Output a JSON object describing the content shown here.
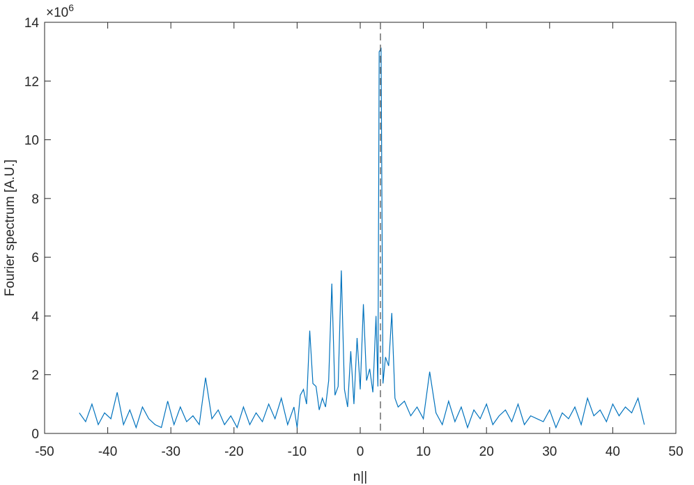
{
  "chart_data": {
    "type": "line",
    "xlabel": "n||",
    "ylabel": "Fourier spectrum [A.U.]",
    "y_exponent_base": "×10",
    "y_exponent": "6",
    "xlim": [
      -50,
      50
    ],
    "xticks": [
      -50,
      -40,
      -30,
      -20,
      -10,
      0,
      10,
      20,
      30,
      40,
      50
    ],
    "ylim": [
      0,
      14
    ],
    "yticks": [
      0,
      2,
      4,
      6,
      8,
      10,
      12,
      14
    ],
    "reference_line_x": 3.2,
    "reference_line_color": "#555555",
    "series": [
      {
        "color": "#0072bd",
        "x": [
          -44.5,
          -43.5,
          -42.5,
          -41.5,
          -40.5,
          -39.5,
          -38.5,
          -37.5,
          -36.5,
          -35.5,
          -34.5,
          -33.5,
          -32.5,
          -31.5,
          -30.5,
          -29.5,
          -28.5,
          -27.5,
          -26.5,
          -25.5,
          -24.5,
          -23.5,
          -22.5,
          -21.5,
          -20.5,
          -19.5,
          -18.5,
          -17.5,
          -16.5,
          -15.5,
          -14.5,
          -13.5,
          -12.5,
          -11.5,
          -10.5,
          -10,
          -9.5,
          -9,
          -8.5,
          -8,
          -7.5,
          -7,
          -6.5,
          -6,
          -5.5,
          -5,
          -4.5,
          -4,
          -3.5,
          -3,
          -2.5,
          -2,
          -1.5,
          -1,
          -0.5,
          0,
          0.5,
          1,
          1.5,
          2,
          2.5,
          2.8,
          3.0,
          3.3,
          3.6,
          4,
          4.5,
          5,
          5.5,
          6,
          7,
          8,
          9,
          10,
          11,
          12,
          13,
          14,
          15,
          16,
          17,
          18,
          19,
          20,
          21,
          22,
          23,
          24,
          25,
          26,
          27,
          28,
          29,
          30,
          31,
          32,
          33,
          34,
          35,
          36,
          37,
          38,
          39,
          40,
          41,
          42,
          43,
          44,
          45
        ],
        "values": [
          0.7,
          0.4,
          1.0,
          0.3,
          0.7,
          0.5,
          1.4,
          0.3,
          0.8,
          0.2,
          0.9,
          0.5,
          0.3,
          0.2,
          1.1,
          0.3,
          0.9,
          0.4,
          0.6,
          0.3,
          1.9,
          0.5,
          0.8,
          0.3,
          0.6,
          0.2,
          0.9,
          0.3,
          0.7,
          0.4,
          1.0,
          0.5,
          1.2,
          0.3,
          0.9,
          0.2,
          1.3,
          1.5,
          1.0,
          3.5,
          1.7,
          1.6,
          0.8,
          1.2,
          0.9,
          1.8,
          5.1,
          1.3,
          1.6,
          5.55,
          1.5,
          0.9,
          2.8,
          1.0,
          3.25,
          1.5,
          4.4,
          1.8,
          2.2,
          1.4,
          4.0,
          1.6,
          13.0,
          13.1,
          1.7,
          2.6,
          2.3,
          4.1,
          1.2,
          0.9,
          1.1,
          0.6,
          0.9,
          0.5,
          2.1,
          0.7,
          0.3,
          1.1,
          0.4,
          0.9,
          0.2,
          0.8,
          0.5,
          1.0,
          0.3,
          0.6,
          0.8,
          0.4,
          1.0,
          0.3,
          0.6,
          0.5,
          0.4,
          0.8,
          0.2,
          0.7,
          0.5,
          0.9,
          0.3,
          1.2,
          0.6,
          0.8,
          0.4,
          1.0,
          0.6,
          0.9,
          0.7,
          1.2,
          0.3
        ]
      }
    ]
  }
}
